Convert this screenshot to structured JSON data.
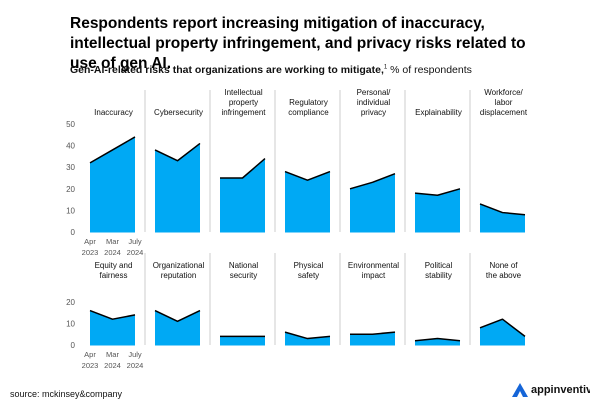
{
  "headline": "Respondents report increasing mitigation of inaccuracy, intellectual property infringement, and privacy risks related to use of gen AI.",
  "subtitle": {
    "bold": "Gen-AI-related risks that organizations are working to mitigate,",
    "footnote_mark": "1",
    "rest": " % of respondents"
  },
  "source": "source: mckinsey&company",
  "logo_text": "appinventiv",
  "colors": {
    "fill": "#00a9f4",
    "line": "#000000",
    "divider": "#cccccc",
    "axis": "#555555"
  },
  "chart_data": {
    "type": "area",
    "x_labels": [
      [
        "Apr",
        "2023"
      ],
      [
        "Mar",
        "2024"
      ],
      [
        "July",
        "2024"
      ]
    ],
    "rows": [
      {
        "ylim": [
          0,
          50
        ],
        "yticks": [
          0,
          10,
          20,
          30,
          40,
          50
        ]
      },
      {
        "ylim": [
          0,
          20
        ],
        "yticks": [
          0,
          10,
          20
        ]
      }
    ],
    "panels": [
      {
        "label": [
          "Inaccuracy"
        ],
        "values": [
          32,
          38,
          44
        ]
      },
      {
        "label": [
          "Cybersecurity"
        ],
        "values": [
          38,
          33,
          41
        ]
      },
      {
        "label": [
          "Intellectual",
          "property",
          "infringement"
        ],
        "values": [
          25,
          25,
          34
        ]
      },
      {
        "label": [
          "Regulatory",
          "compliance"
        ],
        "values": [
          28,
          24,
          28
        ]
      },
      {
        "label": [
          "Personal/",
          "individual",
          "privacy"
        ],
        "values": [
          20,
          23,
          27
        ]
      },
      {
        "label": [
          "Explainability"
        ],
        "values": [
          18,
          17,
          20
        ]
      },
      {
        "label": [
          "Workforce/",
          "labor",
          "displacement"
        ],
        "values": [
          13,
          9,
          8
        ]
      },
      {
        "label": [
          "Equity and",
          "fairness"
        ],
        "values": [
          16,
          12,
          14
        ]
      },
      {
        "label": [
          "Organizational",
          "reputation"
        ],
        "values": [
          16,
          11,
          16
        ]
      },
      {
        "label": [
          "National",
          "security"
        ],
        "values": [
          4,
          4,
          4
        ]
      },
      {
        "label": [
          "Physical",
          "safety"
        ],
        "values": [
          6,
          3,
          4
        ]
      },
      {
        "label": [
          "Environmental",
          "impact"
        ],
        "values": [
          5,
          5,
          6
        ]
      },
      {
        "label": [
          "Political",
          "stability"
        ],
        "values": [
          2,
          3,
          2
        ]
      },
      {
        "label": [
          "None of",
          "the above"
        ],
        "values": [
          8,
          12,
          4
        ]
      }
    ]
  }
}
